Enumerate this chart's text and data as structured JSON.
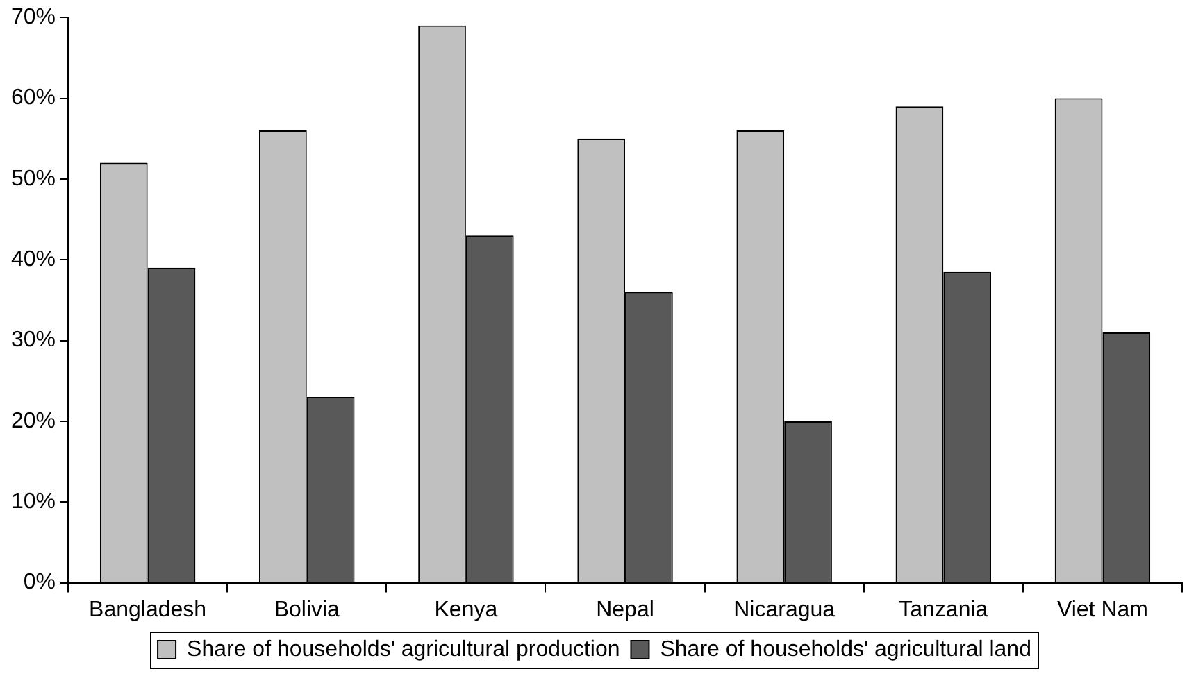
{
  "chart_data": {
    "type": "bar",
    "categories": [
      "Bangladesh",
      "Bolivia",
      "Kenya",
      "Nepal",
      "Nicaragua",
      "Tanzania",
      "Viet Nam"
    ],
    "series": [
      {
        "name": "Share of households' agricultural production",
        "color": "#c0c0c0",
        "values": [
          52,
          56,
          69,
          55,
          56,
          59,
          60
        ]
      },
      {
        "name": "Share of households' agricultural land",
        "color": "#595959",
        "values": [
          39,
          23,
          43,
          36,
          20,
          38.5,
          31
        ]
      }
    ],
    "ylim": [
      0,
      70
    ],
    "yticks": [
      {
        "value": 0,
        "label": "0%"
      },
      {
        "value": 10,
        "label": "10%"
      },
      {
        "value": 20,
        "label": "20%"
      },
      {
        "value": 30,
        "label": "30%"
      },
      {
        "value": 40,
        "label": "40%"
      },
      {
        "value": 50,
        "label": "50%"
      },
      {
        "value": 60,
        "label": "60%"
      },
      {
        "value": 70,
        "label": "70%"
      }
    ],
    "legend": "bottom"
  }
}
